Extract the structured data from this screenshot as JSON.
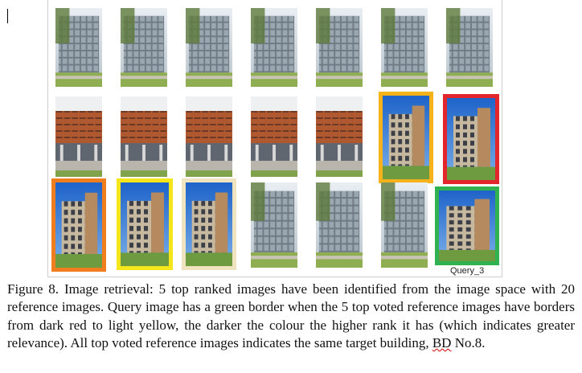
{
  "figure": {
    "query_label": "Query_3",
    "colors": {
      "rank_1": "#e3262b",
      "rank_2": "#f07e1f",
      "rank_3": "#f6b21a",
      "rank_4": "#f5e51b",
      "rank_5": "#efe4bf",
      "query": "#2fb24f"
    },
    "image_rows": [
      [
        "glass-office-building",
        "glass-office-building",
        "glass-office-building",
        "glass-office-building",
        "glass-office-building",
        "glass-office-building",
        "glass-office-building"
      ],
      [
        "brick-building-facade",
        "brick-building-facade",
        "brick-building-facade",
        "brick-building-facade",
        "brick-building-facade",
        "brick-tower-building",
        "brick-tower-building"
      ],
      [
        "brick-tower-building",
        "brick-tower-building",
        "brick-tower-building",
        "glass-office-building",
        "glass-office-building",
        "glass-office-building",
        "brick-tower-building"
      ]
    ]
  },
  "caption": {
    "main_text": "Figure 8. Image retrieval: 5 top ranked images have been  identified from the image space with 20 reference images. Query image has a green border when the 5 top voted reference images have borders from dark red to light yellow, the darker the colour the higher rank it has (which indicates greater relevance). All top voted reference images indicates the same target building, ",
    "end_word": "BD",
    "end_rest": " No.8."
  }
}
